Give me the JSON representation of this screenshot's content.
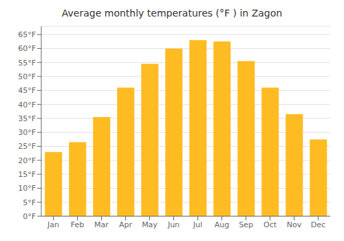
{
  "chart_data": {
    "type": "bar",
    "title": "Average monthly temperatures (°F ) in Zagon",
    "categories": [
      "Jan",
      "Feb",
      "Mar",
      "Apr",
      "May",
      "Jun",
      "Jul",
      "Aug",
      "Sep",
      "Oct",
      "Nov",
      "Dec"
    ],
    "values": [
      23,
      26.5,
      35.5,
      46,
      54.5,
      60,
      63,
      62.5,
      55.5,
      46,
      36.5,
      27.5
    ],
    "color": "#FFBB22",
    "ylim": [
      0,
      68
    ],
    "yticks": [
      {
        "value": 0,
        "label": "0°F"
      },
      {
        "value": 5,
        "label": "5°F"
      },
      {
        "value": 10,
        "label": "10°F"
      },
      {
        "value": 15,
        "label": "15°F"
      },
      {
        "value": 20,
        "label": "20°F"
      },
      {
        "value": 25,
        "label": "25°F"
      },
      {
        "value": 30,
        "label": "30°F"
      },
      {
        "value": 35,
        "label": "35°F"
      },
      {
        "value": 40,
        "label": "40°F"
      },
      {
        "value": 45,
        "label": "45°F"
      },
      {
        "value": 50,
        "label": "50°F"
      },
      {
        "value": 55,
        "label": "55°F"
      },
      {
        "value": 60,
        "label": "60°F"
      },
      {
        "value": 65,
        "label": "65°F"
      }
    ],
    "grid": true
  }
}
